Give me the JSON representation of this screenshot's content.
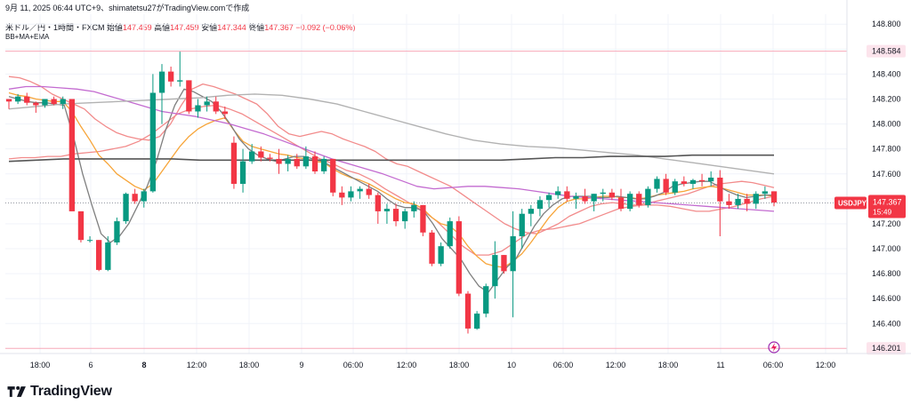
{
  "header": {
    "snapshot_line": "9月 11, 2025 06:44 UTC+9、shimatetsu27がTradingView.comで作成",
    "symbol_line": "米ドル／円・1時間・FXCM",
    "open_label": "始値",
    "open": "147.459",
    "high_label": "高値",
    "high": "147.459",
    "low_label": "安値",
    "low": "147.344",
    "close_label": "終値",
    "close": "147.367",
    "change": "−0.092 (−0.06%)",
    "indicator": "BB+MA+EMA"
  },
  "brand": {
    "name": "TradingView",
    "logo_icon": "tradingview-logo-icon"
  },
  "colors": {
    "up": "#089981",
    "down": "#f23645",
    "bb_upper": "#f28b8b",
    "bb_lower": "#f28b8b",
    "ema": "#f7a539",
    "ma_fast": "#7f7f7f",
    "ma_purple": "#c36bd0",
    "ma_long_light": "#b2b2b2",
    "ma_long_dark": "#555555",
    "hline": "#f7a8b8",
    "price_tag": "#f23645"
  },
  "chart_data": {
    "type": "candlestick",
    "symbol": "USDJPY",
    "timeframe": "1時間",
    "y_axis": {
      "ticks": [
        "148.800",
        "148.600",
        "148.400",
        "148.200",
        "148.000",
        "147.800",
        "147.600",
        "147.400",
        "147.200",
        "147.000",
        "146.800",
        "146.600",
        "146.400"
      ],
      "range": [
        146.16,
        148.88
      ]
    },
    "x_axis": {
      "ticks": [
        "18:00",
        "6",
        "8",
        "12:00",
        "18:00",
        "9",
        "06:00",
        "12:00",
        "18:00",
        "10",
        "06:00",
        "12:00",
        "18:00",
        "11",
        "06:00",
        "12:00"
      ]
    },
    "horizontal_lines": [
      {
        "label": "148.584",
        "value": 148.584
      },
      {
        "label": "146.201",
        "value": 146.201
      }
    ],
    "last_price": {
      "symbol_label": "USDJPY",
      "price_label": "147.367",
      "countdown": "15:49",
      "value": 147.367
    },
    "candles": [
      [
        148.2,
        148.2,
        148.12,
        148.18
      ],
      [
        148.18,
        148.24,
        148.16,
        148.22
      ],
      [
        148.22,
        148.25,
        148.15,
        148.17
      ],
      [
        148.17,
        148.18,
        148.09,
        148.15
      ],
      [
        148.15,
        148.2,
        148.13,
        148.2
      ],
      [
        148.2,
        148.22,
        148.15,
        148.16
      ],
      [
        148.16,
        148.22,
        148.12,
        148.2
      ],
      [
        148.2,
        148.2,
        147.3,
        147.3
      ],
      [
        147.3,
        147.3,
        147.05,
        147.07
      ],
      [
        147.07,
        147.1,
        147.05,
        147.07
      ],
      [
        147.07,
        147.07,
        146.82,
        146.83
      ],
      [
        146.83,
        147.1,
        146.82,
        147.05
      ],
      [
        147.05,
        147.25,
        147.03,
        147.22
      ],
      [
        147.22,
        147.45,
        147.2,
        147.44
      ],
      [
        147.44,
        147.48,
        147.36,
        147.38
      ],
      [
        147.38,
        147.48,
        147.33,
        147.46
      ],
      [
        147.46,
        148.4,
        147.45,
        148.25
      ],
      [
        148.25,
        148.48,
        148.0,
        148.42
      ],
      [
        148.42,
        148.46,
        148.3,
        148.34
      ],
      [
        148.34,
        148.58,
        148.3,
        148.35
      ],
      [
        148.35,
        148.35,
        148.08,
        148.1
      ],
      [
        148.1,
        148.2,
        148.05,
        148.15
      ],
      [
        148.15,
        148.22,
        148.1,
        148.18
      ],
      [
        148.18,
        148.22,
        148.08,
        148.1
      ],
      [
        148.1,
        148.14,
        148.04,
        148.08
      ],
      [
        147.85,
        147.9,
        147.48,
        147.52
      ],
      [
        147.52,
        147.8,
        147.45,
        147.7
      ],
      [
        147.7,
        147.84,
        147.68,
        147.78
      ],
      [
        147.78,
        147.82,
        147.7,
        147.73
      ],
      [
        147.73,
        147.76,
        147.7,
        147.72
      ],
      [
        147.72,
        147.8,
        147.6,
        147.68
      ],
      [
        147.68,
        147.75,
        147.62,
        147.72
      ],
      [
        147.72,
        147.76,
        147.64,
        147.66
      ],
      [
        147.66,
        147.82,
        147.64,
        147.74
      ],
      [
        147.74,
        147.78,
        147.6,
        147.62
      ],
      [
        147.62,
        147.74,
        147.6,
        147.72
      ],
      [
        147.72,
        147.72,
        147.42,
        147.45
      ],
      [
        147.45,
        147.5,
        147.35,
        147.41
      ],
      [
        147.41,
        147.5,
        147.38,
        147.46
      ],
      [
        147.46,
        147.5,
        147.4,
        147.48
      ],
      [
        147.48,
        147.52,
        147.4,
        147.43
      ],
      [
        147.43,
        147.45,
        147.2,
        147.3
      ],
      [
        147.3,
        147.36,
        147.2,
        147.32
      ],
      [
        147.32,
        147.36,
        147.18,
        147.22
      ],
      [
        147.22,
        147.32,
        147.16,
        147.3
      ],
      [
        147.3,
        147.38,
        147.25,
        147.35
      ],
      [
        147.35,
        147.35,
        147.1,
        147.13
      ],
      [
        147.13,
        147.15,
        146.86,
        146.88
      ],
      [
        146.88,
        147.05,
        146.86,
        147.02
      ],
      [
        147.02,
        147.25,
        147.0,
        147.22
      ],
      [
        147.22,
        147.26,
        146.62,
        146.64
      ],
      [
        146.64,
        146.66,
        146.32,
        146.36
      ],
      [
        146.36,
        146.5,
        146.35,
        146.48
      ],
      [
        146.48,
        146.72,
        146.45,
        146.7
      ],
      [
        146.7,
        147.06,
        146.6,
        146.95
      ],
      [
        146.95,
        146.95,
        146.8,
        146.82
      ],
      [
        146.82,
        147.3,
        146.45,
        147.1
      ],
      [
        147.1,
        147.32,
        147.0,
        147.28
      ],
      [
        147.28,
        147.35,
        147.18,
        147.32
      ],
      [
        147.32,
        147.42,
        147.26,
        147.39
      ],
      [
        147.39,
        147.45,
        147.33,
        147.43
      ],
      [
        147.43,
        147.5,
        147.4,
        147.46
      ],
      [
        147.46,
        147.5,
        147.38,
        147.4
      ],
      [
        147.4,
        147.45,
        147.32,
        147.42
      ],
      [
        147.42,
        147.48,
        147.36,
        147.38
      ],
      [
        147.38,
        147.44,
        147.3,
        147.44
      ],
      [
        147.44,
        147.48,
        147.38,
        147.45
      ],
      [
        147.45,
        147.48,
        147.39,
        147.41
      ],
      [
        147.41,
        147.48,
        147.3,
        147.32
      ],
      [
        147.32,
        147.46,
        147.3,
        147.44
      ],
      [
        147.44,
        147.46,
        147.33,
        147.35
      ],
      [
        147.35,
        147.5,
        147.33,
        147.48
      ],
      [
        147.48,
        147.58,
        147.45,
        147.56
      ],
      [
        147.56,
        147.6,
        147.43,
        147.45
      ],
      [
        147.45,
        147.56,
        147.43,
        147.54
      ],
      [
        147.54,
        147.58,
        147.5,
        147.52
      ],
      [
        147.52,
        147.56,
        147.48,
        147.55
      ],
      [
        147.55,
        147.6,
        147.5,
        147.54
      ],
      [
        147.54,
        147.62,
        147.5,
        147.57
      ],
      [
        147.57,
        147.63,
        147.1,
        147.38
      ],
      [
        147.38,
        147.44,
        147.32,
        147.35
      ],
      [
        147.35,
        147.44,
        147.32,
        147.4
      ],
      [
        147.4,
        147.44,
        147.3,
        147.36
      ],
      [
        147.36,
        147.46,
        147.32,
        147.44
      ],
      [
        147.44,
        147.5,
        147.4,
        147.46
      ],
      [
        147.46,
        147.46,
        147.34,
        147.37
      ]
    ],
    "indicators": [
      {
        "kind": "bb_upper",
        "values": [
          148.38,
          148.37,
          148.34,
          148.3,
          148.24,
          148.2,
          148.16,
          148.12,
          148.04,
          147.98,
          147.93,
          147.9,
          147.88,
          147.87,
          147.9,
          148.0,
          148.15,
          148.28,
          148.32,
          148.3,
          148.27,
          148.24,
          148.2,
          148.16,
          148.08,
          147.98,
          147.92,
          147.9,
          147.92,
          147.94,
          147.92,
          147.88,
          147.85,
          147.82,
          147.78,
          147.72,
          147.68,
          147.66,
          147.62,
          147.58,
          147.54,
          147.5,
          147.44,
          147.38,
          147.32,
          147.26,
          147.2,
          147.16,
          147.13,
          147.12,
          147.16,
          147.2,
          147.26,
          147.3,
          147.34,
          147.36,
          147.37,
          147.36,
          147.35,
          147.36,
          147.38,
          147.4,
          147.42,
          147.44,
          147.47,
          147.5,
          147.52,
          147.53,
          147.54,
          147.53,
          147.51,
          147.49
        ]
      },
      {
        "kind": "bb_lower",
        "values": [
          147.72,
          147.73,
          147.73,
          147.74,
          147.74,
          147.76,
          147.77,
          147.78,
          147.8,
          147.82,
          147.86,
          147.92,
          148.0,
          148.08,
          148.12,
          148.14,
          148.15,
          148.12,
          148.08,
          148.02,
          147.96,
          147.9,
          147.84,
          147.78,
          147.72,
          147.68,
          147.63,
          147.6,
          147.55,
          147.48,
          147.42,
          147.36,
          147.3,
          147.22,
          147.12,
          147.02,
          146.95,
          146.95,
          146.98,
          147.05,
          147.12,
          147.15,
          147.16,
          147.18,
          147.2,
          147.24,
          147.28,
          147.32,
          147.34,
          147.35,
          147.35,
          147.34,
          147.32,
          147.3,
          147.3,
          147.32,
          147.34,
          147.37,
          147.4,
          147.42
        ]
      },
      {
        "kind": "ema",
        "values": [
          148.25,
          148.23,
          148.22,
          148.2,
          148.19,
          148.18,
          148.18,
          148.1,
          147.98,
          147.87,
          147.75,
          147.68,
          147.6,
          147.55,
          147.5,
          147.47,
          147.52,
          147.62,
          147.72,
          147.82,
          147.9,
          147.96,
          148.0,
          148.03,
          148.05,
          147.95,
          147.86,
          147.82,
          147.8,
          147.78,
          147.76,
          147.75,
          147.73,
          147.72,
          147.7,
          147.69,
          147.64,
          147.6,
          147.57,
          147.55,
          147.52,
          147.48,
          147.44,
          147.4,
          147.37,
          147.36,
          147.32,
          147.25,
          147.2,
          147.18,
          147.12,
          147.02,
          146.94,
          146.88,
          146.86,
          146.85,
          146.9,
          146.96,
          147.05,
          147.15,
          147.25,
          147.33,
          147.38,
          147.4,
          147.4,
          147.41,
          147.42,
          147.42,
          147.41,
          147.41,
          147.4,
          147.41,
          147.43,
          147.44,
          147.45,
          147.46,
          147.48,
          147.49,
          147.5,
          147.49,
          147.47,
          147.45,
          147.43,
          147.43,
          147.43,
          147.42
        ]
      },
      {
        "kind": "ma_fast",
        "values": [
          148.22,
          148.2,
          148.18,
          148.17,
          148.17,
          148.16,
          148.15,
          147.9,
          147.6,
          147.35,
          147.12,
          147.05,
          147.1,
          147.2,
          147.35,
          147.5,
          147.7,
          147.95,
          148.15,
          148.28,
          148.26,
          148.22,
          148.18,
          148.1,
          148.0,
          147.88,
          147.8,
          147.75,
          147.72,
          147.7,
          147.72,
          147.74,
          147.74,
          147.72,
          147.7,
          147.66,
          147.62,
          147.58,
          147.54,
          147.5,
          147.46,
          147.4,
          147.35,
          147.33,
          147.33,
          147.3,
          147.2,
          147.08,
          147.0,
          146.92,
          146.8,
          146.7,
          146.65,
          146.75,
          146.85,
          146.92,
          147.05,
          147.18,
          147.28,
          147.35,
          147.4,
          147.42,
          147.42,
          147.42,
          147.41,
          147.41,
          147.42,
          147.41,
          147.4,
          147.4,
          147.42,
          147.45,
          147.5,
          147.52,
          147.53,
          147.54,
          147.54,
          147.5,
          147.46,
          147.43,
          147.41,
          147.42,
          147.43,
          147.43
        ]
      },
      {
        "kind": "ma_purple",
        "values": [
          148.28,
          148.3,
          148.3,
          148.29,
          148.28,
          148.26,
          148.22,
          148.18,
          148.14,
          148.1,
          148.08,
          148.06,
          148.03,
          148.0,
          147.96,
          147.92,
          147.87,
          147.82,
          147.77,
          147.72,
          147.68,
          147.64,
          147.6,
          147.55,
          147.5,
          147.48,
          147.49,
          147.5,
          147.5,
          147.49,
          147.48,
          147.46,
          147.44,
          147.42,
          147.41,
          147.4,
          147.39,
          147.38,
          147.37,
          147.36,
          147.35,
          147.34,
          147.33,
          147.32,
          147.31,
          147.3
        ]
      },
      {
        "kind": "ma_long_light",
        "values": [
          148.12,
          148.14,
          148.16,
          148.17,
          148.18,
          148.19,
          148.2,
          148.21,
          148.23,
          148.24,
          148.23,
          148.2,
          148.16,
          148.1,
          148.04,
          147.98,
          147.92,
          147.87,
          147.84,
          147.82,
          147.81,
          147.79,
          147.77,
          147.75,
          147.72,
          147.69,
          147.66,
          147.63,
          147.6
        ]
      },
      {
        "kind": "ma_long_dark",
        "values": [
          147.7,
          147.71,
          147.72,
          147.72,
          147.72,
          147.72,
          147.72,
          147.71,
          147.71,
          147.71,
          147.71,
          147.71,
          147.71,
          147.71,
          147.71,
          147.71,
          147.71,
          147.71,
          147.71,
          147.72,
          147.73,
          147.73,
          147.74,
          147.74,
          147.74,
          147.75,
          147.75,
          147.75,
          147.75
        ]
      }
    ]
  }
}
